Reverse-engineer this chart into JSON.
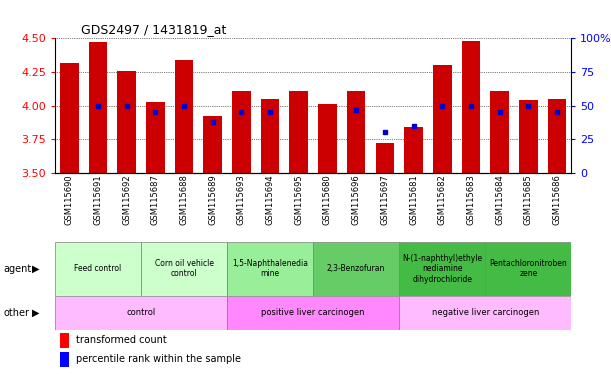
{
  "title": "GDS2497 / 1431819_at",
  "samples": [
    "GSM115690",
    "GSM115691",
    "GSM115692",
    "GSM115687",
    "GSM115688",
    "GSM115689",
    "GSM115693",
    "GSM115694",
    "GSM115695",
    "GSM115680",
    "GSM115696",
    "GSM115697",
    "GSM115681",
    "GSM115682",
    "GSM115683",
    "GSM115684",
    "GSM115685",
    "GSM115686"
  ],
  "transformed_counts": [
    4.32,
    4.47,
    4.26,
    4.03,
    4.34,
    3.92,
    4.11,
    4.05,
    4.11,
    4.01,
    4.11,
    3.72,
    3.84,
    4.3,
    4.48,
    4.11,
    4.04,
    4.05
  ],
  "percentile_ranks": [
    null,
    50,
    50,
    45,
    50,
    38,
    45,
    45,
    null,
    null,
    47,
    30,
    35,
    50,
    50,
    45,
    50,
    45
  ],
  "ylim_left": [
    3.5,
    4.5
  ],
  "ylim_right": [
    0,
    100
  ],
  "yticks_left": [
    3.5,
    3.75,
    4.0,
    4.25,
    4.5
  ],
  "yticks_right": [
    0,
    25,
    50,
    75,
    100
  ],
  "bar_color": "#cc0000",
  "dot_color": "#0000cc",
  "agent_groups": [
    {
      "label": "Feed control",
      "start": 0,
      "end": 3,
      "color": "#ccffcc"
    },
    {
      "label": "Corn oil vehicle\ncontrol",
      "start": 3,
      "end": 6,
      "color": "#ccffcc"
    },
    {
      "label": "1,5-Naphthalenedia\nmine",
      "start": 6,
      "end": 9,
      "color": "#99ee99"
    },
    {
      "label": "2,3-Benzofuran",
      "start": 9,
      "end": 12,
      "color": "#66cc66"
    },
    {
      "label": "N-(1-naphthyl)ethyle\nnediamine\ndihydrochloride",
      "start": 12,
      "end": 15,
      "color": "#44bb44"
    },
    {
      "label": "Pentachloronitroben\nzene",
      "start": 15,
      "end": 18,
      "color": "#44bb44"
    }
  ],
  "other_groups": [
    {
      "label": "control",
      "start": 0,
      "end": 6,
      "color": "#ffbbff"
    },
    {
      "label": "positive liver carcinogen",
      "start": 6,
      "end": 12,
      "color": "#ff88ff"
    },
    {
      "label": "negative liver carcinogen",
      "start": 12,
      "end": 18,
      "color": "#ffbbff"
    }
  ],
  "legend_items": [
    {
      "label": "transformed count",
      "color": "#cc0000"
    },
    {
      "label": "percentile rank within the sample",
      "color": "#0000cc"
    }
  ]
}
